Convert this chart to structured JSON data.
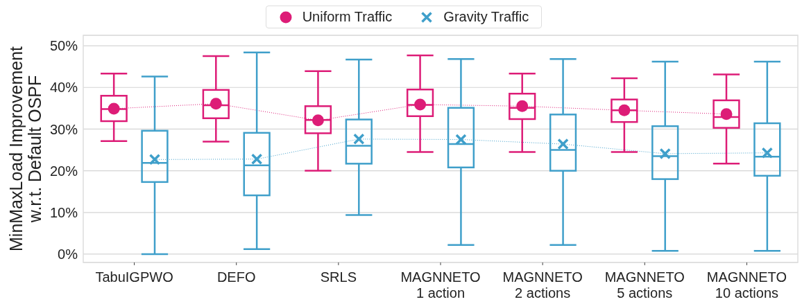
{
  "chart_data": {
    "type": "box",
    "ylabel": "MinMaxLoad Improvement w.r.t. Default OSPF",
    "categories": [
      "TabuIGPWO",
      "DEFO",
      "SRLS",
      "MAGNNETO 1 action",
      "MAGNNETO 2 actions",
      "MAGNNETO 5 actions",
      "MAGNNETO 10 actions"
    ],
    "series": [
      {
        "color": "#dd1c77",
        "boxes": [
          {
            "low": 27.1,
            "q1": 31.9,
            "median": 34.8,
            "q3": 38.0,
            "high": 43.3
          },
          {
            "low": 27.0,
            "q1": 32.6,
            "median": 35.7,
            "q3": 39.4,
            "high": 47.5
          },
          {
            "low": 20.0,
            "q1": 29.0,
            "median": 32.2,
            "q3": 35.5,
            "high": 43.9
          },
          {
            "low": 24.5,
            "q1": 33.1,
            "median": 35.8,
            "q3": 39.5,
            "high": 47.7
          },
          {
            "low": 24.5,
            "q1": 32.4,
            "median": 35.1,
            "q3": 38.5,
            "high": 43.3
          },
          {
            "low": 24.5,
            "q1": 31.7,
            "median": 34.5,
            "q3": 37.1,
            "high": 42.2
          },
          {
            "low": 21.7,
            "q1": 30.3,
            "median": 32.9,
            "q3": 36.9,
            "high": 43.1
          }
        ]
      },
      {
        "color": "#3f9fca",
        "boxes": [
          {
            "low": 0.0,
            "q1": 17.3,
            "median": 21.9,
            "q3": 29.6,
            "high": 42.6
          },
          {
            "low": 1.2,
            "q1": 14.1,
            "median": 21.3,
            "q3": 29.1,
            "high": 48.4
          },
          {
            "low": 9.4,
            "q1": 21.7,
            "median": 26.0,
            "q3": 32.3,
            "high": 46.7
          },
          {
            "low": 2.2,
            "q1": 20.8,
            "median": 26.4,
            "q3": 35.1,
            "high": 46.8
          },
          {
            "low": 2.2,
            "q1": 20.0,
            "median": 25.0,
            "q3": 33.5,
            "high": 46.8
          },
          {
            "low": 0.8,
            "q1": 18.0,
            "median": 23.5,
            "q3": 30.7,
            "high": 46.2
          },
          {
            "low": 0.8,
            "q1": 18.8,
            "median": 23.4,
            "q3": 31.4,
            "high": 46.2
          }
        ]
      },
      {
        "type": "line",
        "name": "Uniform Traffic",
        "color": "#dd1c77",
        "marker": "circle",
        "line_style": "dotted",
        "values": [
          34.9,
          36.1,
          32.1,
          35.9,
          35.5,
          34.5,
          33.6
        ]
      },
      {
        "type": "line",
        "name": "Gravity Traffic",
        "color": "#3f9fca",
        "marker": "cross",
        "line_style": "dotted",
        "values": [
          22.7,
          22.8,
          27.6,
          27.5,
          26.4,
          24.1,
          24.3
        ]
      }
    ],
    "ylim": [
      -2,
      52.5
    ],
    "yticks": [
      {
        "value": 0,
        "label": "0%"
      },
      {
        "value": 10,
        "label": "10%"
      },
      {
        "value": 20,
        "label": "20%"
      },
      {
        "value": 30,
        "label": "30%"
      },
      {
        "value": 40,
        "label": "40%"
      },
      {
        "value": 50,
        "label": "50%"
      }
    ],
    "grid": "y",
    "legend": "top"
  }
}
